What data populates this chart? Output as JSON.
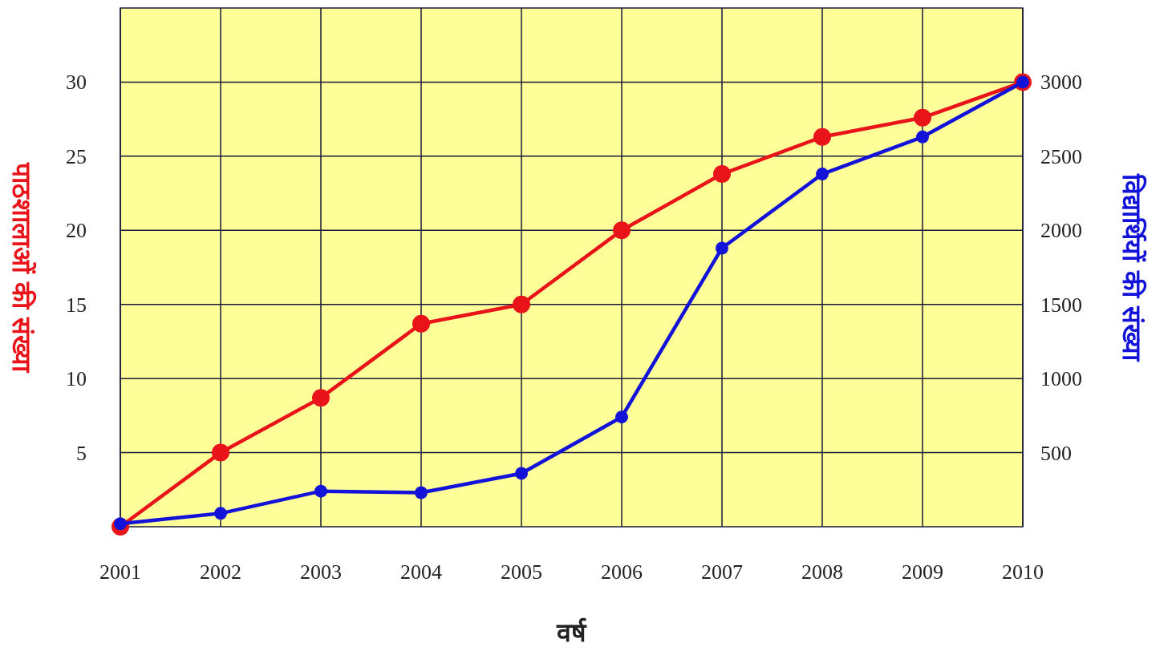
{
  "chart_data": {
    "type": "line",
    "xlabel": "वर्ष",
    "ylabel": "पाठशालाओं की संख्या",
    "y2label": "विद्यार्थियों की संख्या",
    "x": [
      2001,
      2002,
      2003,
      2004,
      2005,
      2006,
      2007,
      2008,
      2009,
      2010
    ],
    "xlim": [
      2001,
      2010
    ],
    "xticks": [
      2001,
      2002,
      2003,
      2004,
      2005,
      2006,
      2007,
      2008,
      2009,
      2010
    ],
    "ylim": [
      0,
      35
    ],
    "yticks": [
      5,
      10,
      15,
      20,
      25,
      30
    ],
    "y2lim": [
      0,
      3500
    ],
    "y2ticks": [
      500,
      1000,
      1500,
      2000,
      2500,
      3000
    ],
    "grid": true,
    "marker": "circle",
    "line_style": "solid",
    "series": [
      {
        "color": "#e8141a",
        "values": [
          0,
          5,
          8.7,
          13.7,
          15,
          20,
          23.8,
          26.3,
          27.6,
          30
        ]
      },
      {
        "color": "#1212d8",
        "axis": "y2",
        "values": [
          20,
          90,
          240,
          230,
          360,
          740,
          1880,
          2380,
          2630,
          3000
        ]
      }
    ]
  }
}
